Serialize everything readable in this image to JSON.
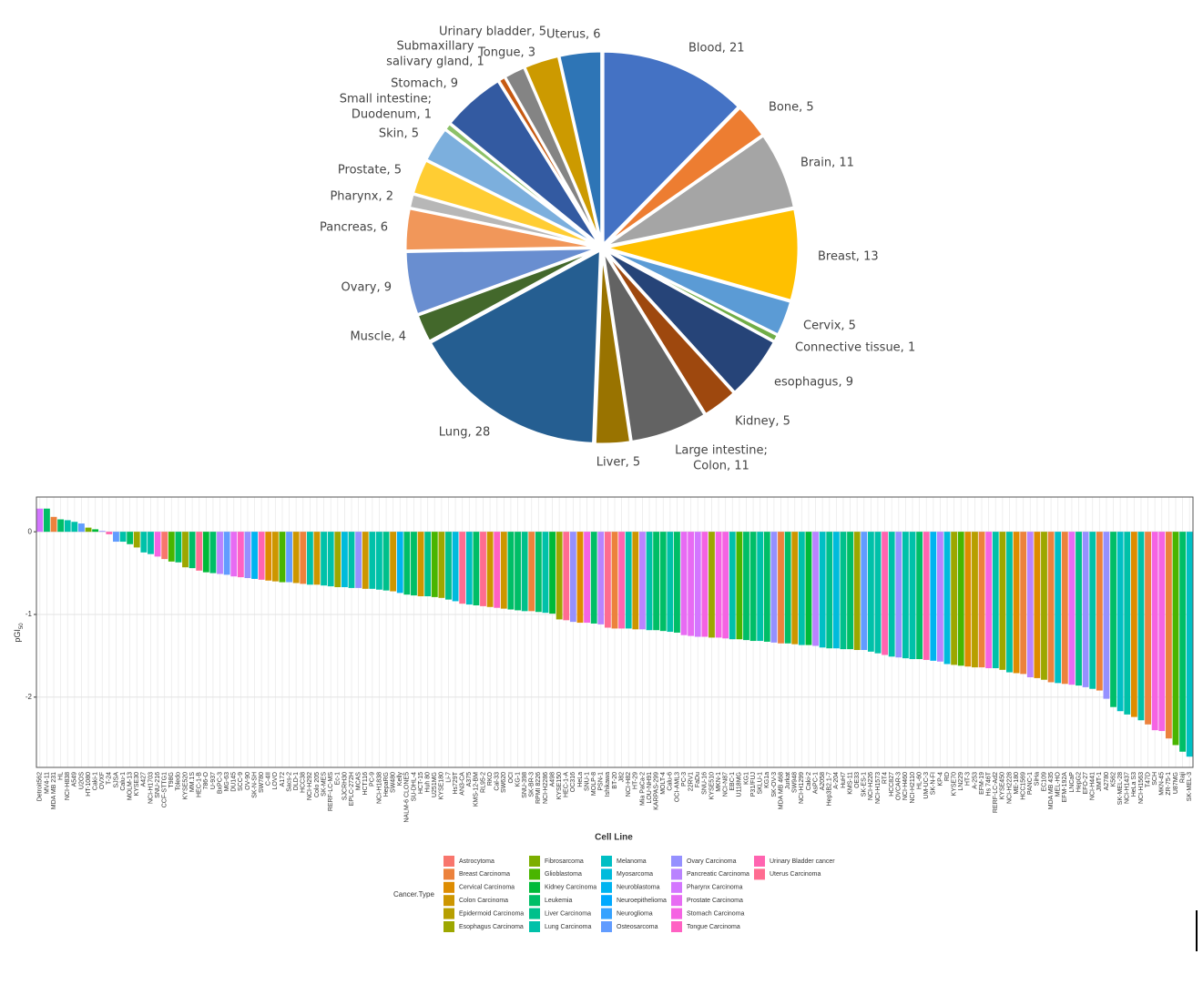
{
  "chart_data": [
    {
      "type": "pie",
      "categories": [
        "Blood",
        "Bone",
        "Brain",
        "Breast",
        "Cervix",
        "Connective tissue",
        "esophagus",
        "Kidney",
        "Large intestine; Colon",
        "Liver",
        "Lung",
        "Muscle",
        "Ovary",
        "Pancreas",
        "Pharynx",
        "Prostate",
        "Skin",
        "Small intestine; Duodenum",
        "Stomach",
        "Submaxillary salivary gland",
        "Tongue",
        "Urinary bladder",
        "Uterus"
      ],
      "values": [
        21,
        5,
        11,
        13,
        5,
        1,
        9,
        5,
        11,
        5,
        28,
        4,
        9,
        6,
        2,
        5,
        5,
        1,
        9,
        1,
        3,
        5,
        6
      ],
      "value_labels": [
        [
          "Blood, 21"
        ],
        [
          "Bone, 5"
        ],
        [
          "Brain, 11"
        ],
        [
          "Breast, 13"
        ],
        [
          "Cervix, 5"
        ],
        [
          "Connective tissue, 1"
        ],
        [
          "esophagus, 9"
        ],
        [
          "Kidney, 5"
        ],
        [
          "Large intestine;",
          "Colon, 11"
        ],
        [
          "Liver, 5"
        ],
        [
          "Lung, 28"
        ],
        [
          "Muscle, 4"
        ],
        [
          "Ovary, 9"
        ],
        [
          "Pancreas, 6"
        ],
        [
          "Pharynx, 2"
        ],
        [
          "Prostate, 5"
        ],
        [
          "Skin, 5"
        ],
        [
          "Small intestine;",
          "Duodenum, 1"
        ],
        [
          "Stomach, 9"
        ],
        [
          "Submaxillary",
          "salivary gland, 1"
        ],
        [
          "Tongue, 3"
        ],
        [
          "Urinary bladder, 5"
        ],
        [
          "Uterus, 6"
        ]
      ],
      "colors": [
        "#4472C4",
        "#ED7D31",
        "#A5A5A5",
        "#FFC000",
        "#5B9BD5",
        "#70AD47",
        "#264478",
        "#9E480E",
        "#636363",
        "#997300",
        "#255E91",
        "#43682B",
        "#698ED0",
        "#F1975A",
        "#B7B7B7",
        "#FFCD33",
        "#7CAFDD",
        "#8CC168",
        "#335AA1",
        "#C65911",
        "#848484",
        "#CC9A00",
        "#2E75B6"
      ]
    },
    {
      "type": "bar",
      "categories": [
        "Detroit562",
        "MV4-11",
        "MDA MB 231",
        "HL",
        "NCI-H838",
        "A549",
        "U2OS",
        "HT-1080",
        "Caki-1",
        "OVXF",
        "T-24",
        "SJSA",
        "Calu-1",
        "MOLM-13",
        "KYSE30",
        "A427",
        "NCI-H1703",
        "SNU-216",
        "CCF-STTG1",
        "T98G",
        "Toledo",
        "KYSE520",
        "MM.1S",
        "HEC-1-B",
        "786-O",
        "U-937",
        "BxPC-3",
        "MG-63",
        "DU145",
        "SCC-9",
        "OV-90",
        "SK-N-SH",
        "SW780",
        "C-4II",
        "LOVO",
        "A172",
        "Sacs-2",
        "DLD-1",
        "HCC38",
        "NCI-H292",
        "Colo 205",
        "SK-MES",
        "RERF-LC-MS",
        "Ec-1",
        "SJCRH30",
        "EPLC-272H",
        "MCAS",
        "HCT116",
        "PC-9",
        "NCI-H1838",
        "HepaRG",
        "SW480",
        "Kelly",
        "NALM-6 CLONE5",
        "SU-DHL-4",
        "HCT-15",
        "Huh 80",
        "U251MG",
        "KYSE180",
        "Li-7",
        "Hs729T",
        "AN3-CA",
        "A375",
        "KMS-12-BM",
        "RL95-2",
        "RKO",
        "Cal-33",
        "SW620",
        "OCI",
        "KG-1",
        "SNU-398",
        "SK-BR-3",
        "RPMI 8226",
        "NCI-H2286",
        "A498",
        "KYSE150",
        "HEC-1-A",
        "OC316",
        "HeLa",
        "SNU-1",
        "MOLP-8",
        "PSN-1",
        "Ishikawa",
        "BT-20",
        "J82",
        "NCI-H82",
        "HT-29",
        "Mia PaCa-2",
        "LOU-NH91",
        "KARPAS-299",
        "MOLT-4",
        "Calu-6",
        "OCI-AML3",
        "PC-3",
        "22RV1",
        "FaDu",
        "SNU-16",
        "KYSE510",
        "MKN-1",
        "NCI-N87",
        "EBC-1",
        "U118MG",
        "KG1",
        "P31/FUJ",
        "SKLU-1",
        "KG1a",
        "SK-OV-3",
        "MDA MB 468",
        "Jurkat",
        "SW948",
        "NCI-H1299",
        "Caki-2",
        "AsPC-1",
        "A2058",
        "Hep3B2.1-7",
        "A-204",
        "HuH7",
        "KMS-11",
        "OE33",
        "SK-ES-1",
        "NCI-H226",
        "NCI-H1573",
        "RT4",
        "HCC827",
        "OVCAR-3",
        "NCI-H460",
        "NCI-H2110",
        "HL-60",
        "UM-UC-3",
        "SK-N-FI",
        "KP-4",
        "RD",
        "KYSE70",
        "LN229",
        "HT-3",
        "A-253",
        "EFM-19",
        "Hs 746T",
        "RERF-LC-Ad2",
        "KYSE450",
        "NCI-H2228",
        "ME-180",
        "HCC1569",
        "PANC-1",
        "SiHa",
        "EC109",
        "MDA MB 435",
        "MEL-HO",
        "EFM-192A",
        "LNCaP",
        "HepG2",
        "EFO-27",
        "NCI-H441",
        "JIMT-1",
        "A2780",
        "K562",
        "SK-MEL-28",
        "NCI-H1437",
        "HeLa S3",
        "NCI-H1563",
        "T47D",
        "SCH",
        "MKN-45",
        "ZR-75-1",
        "U87MG",
        "Raji",
        "SK-MEL-3"
      ],
      "values": [
        0.28,
        0.28,
        0.18,
        0.15,
        0.14,
        0.12,
        0.1,
        0.05,
        0.03,
        0.01,
        -0.03,
        -0.12,
        -0.12,
        -0.15,
        -0.19,
        -0.25,
        -0.27,
        -0.3,
        -0.33,
        -0.36,
        -0.37,
        -0.43,
        -0.44,
        -0.47,
        -0.49,
        -0.5,
        -0.51,
        -0.52,
        -0.54,
        -0.55,
        -0.56,
        -0.57,
        -0.58,
        -0.59,
        -0.6,
        -0.61,
        -0.61,
        -0.62,
        -0.63,
        -0.64,
        -0.64,
        -0.65,
        -0.66,
        -0.67,
        -0.67,
        -0.68,
        -0.68,
        -0.69,
        -0.69,
        -0.7,
        -0.71,
        -0.72,
        -0.74,
        -0.76,
        -0.77,
        -0.78,
        -0.78,
        -0.79,
        -0.8,
        -0.82,
        -0.84,
        -0.87,
        -0.88,
        -0.89,
        -0.9,
        -0.91,
        -0.92,
        -0.93,
        -0.94,
        -0.95,
        -0.96,
        -0.96,
        -0.97,
        -0.98,
        -0.99,
        -1.06,
        -1.07,
        -1.09,
        -1.1,
        -1.1,
        -1.11,
        -1.12,
        -1.16,
        -1.17,
        -1.17,
        -1.17,
        -1.18,
        -1.18,
        -1.19,
        -1.19,
        -1.2,
        -1.21,
        -1.22,
        -1.25,
        -1.26,
        -1.27,
        -1.27,
        -1.28,
        -1.28,
        -1.29,
        -1.3,
        -1.3,
        -1.31,
        -1.32,
        -1.32,
        -1.33,
        -1.34,
        -1.35,
        -1.35,
        -1.36,
        -1.37,
        -1.37,
        -1.38,
        -1.4,
        -1.41,
        -1.41,
        -1.42,
        -1.42,
        -1.43,
        -1.43,
        -1.45,
        -1.47,
        -1.49,
        -1.51,
        -1.52,
        -1.53,
        -1.54,
        -1.54,
        -1.55,
        -1.56,
        -1.57,
        -1.6,
        -1.61,
        -1.62,
        -1.63,
        -1.64,
        -1.64,
        -1.65,
        -1.65,
        -1.67,
        -1.7,
        -1.71,
        -1.72,
        -1.76,
        -1.77,
        -1.79,
        -1.82,
        -1.83,
        -1.84,
        -1.85,
        -1.86,
        -1.88,
        -1.9,
        -1.92,
        -2.02,
        -2.12,
        -2.17,
        -2.21,
        -2.24,
        -2.28,
        -2.33,
        -2.4,
        -2.41,
        -2.5,
        -2.58,
        -2.66,
        -2.72
      ],
      "colors": [
        "#D376FF",
        "#00BE67",
        "#EC823C",
        "#00BE67",
        "#00C1A9",
        "#00C1A9",
        "#619CFF",
        "#7CAE00",
        "#00BA38",
        "#9590FF",
        "#FF64B0",
        "#619CFF",
        "#00C1A9",
        "#00BE67",
        "#9DA700",
        "#00C1A9",
        "#00C1A9",
        "#F563E3",
        "#F8766D",
        "#49B500",
        "#00BE67",
        "#9DA700",
        "#00BE67",
        "#FF6C91",
        "#00BA38",
        "#00BE67",
        "#B983FF",
        "#619CFF",
        "#E76BF3",
        "#FF61C3",
        "#9590FF",
        "#00B4F0",
        "#FF64B0",
        "#DE8C00",
        "#CD9600",
        "#49B500",
        "#619CFF",
        "#CD9600",
        "#EC823C",
        "#00C1A9",
        "#CD9600",
        "#00C1A9",
        "#00C1A9",
        "#9DA700",
        "#00BBDC",
        "#00C1A9",
        "#9590FF",
        "#CD9600",
        "#00C1A9",
        "#00C1A9",
        "#00C08B",
        "#CD9600",
        "#00B4F0",
        "#00BE67",
        "#00BE67",
        "#CD9600",
        "#00C08B",
        "#49B500",
        "#9DA700",
        "#00C08B",
        "#00BBDC",
        "#FF6C91",
        "#00BFC4",
        "#00BE67",
        "#FF6C91",
        "#CD9600",
        "#FF61C3",
        "#CD9600",
        "#00BE67",
        "#00BE67",
        "#00C08B",
        "#EC823C",
        "#00BE67",
        "#00C1A9",
        "#00BA38",
        "#9DA700",
        "#FF6C91",
        "#9590FF",
        "#DE8C00",
        "#F563E3",
        "#00BE67",
        "#B983FF",
        "#FF6C91",
        "#EC823C",
        "#FF64B0",
        "#00C1A9",
        "#CD9600",
        "#B983FF",
        "#00C1A9",
        "#00BE67",
        "#00BE67",
        "#00C1A9",
        "#00BE67",
        "#E76BF3",
        "#E76BF3",
        "#D376FF",
        "#F563E3",
        "#9DA700",
        "#F563E3",
        "#F563E3",
        "#00C1A9",
        "#49B500",
        "#00BE67",
        "#00BE67",
        "#00C1A9",
        "#00BE67",
        "#9590FF",
        "#EC823C",
        "#00BE67",
        "#CD9600",
        "#00C1A9",
        "#00BA38",
        "#B983FF",
        "#00BFC4",
        "#00C08B",
        "#00BBDC",
        "#00C08B",
        "#00BE67",
        "#9DA700",
        "#619CFF",
        "#00C1A9",
        "#00C1A9",
        "#FF64B0",
        "#00C1A9",
        "#9590FF",
        "#00C1A9",
        "#00C1A9",
        "#00BE67",
        "#FF64B0",
        "#00B4F0",
        "#B983FF",
        "#00BBDC",
        "#9DA700",
        "#49B500",
        "#DE8C00",
        "#B79F00",
        "#EC823C",
        "#F563E3",
        "#00C1A9",
        "#9DA700",
        "#00C1A9",
        "#DE8C00",
        "#EC823C",
        "#B983FF",
        "#DE8C00",
        "#9DA700",
        "#EC823C",
        "#00BFC4",
        "#EC823C",
        "#E76BF3",
        "#00C08B",
        "#9590FF",
        "#00C1A9",
        "#EC823C",
        "#9590FF",
        "#00BE67",
        "#00BFC4",
        "#00C1A9",
        "#DE8C00",
        "#00C1A9",
        "#EC823C",
        "#F563E3",
        "#F563E3",
        "#EC823C",
        "#49B500",
        "#00BE67",
        "#00BFC4"
      ],
      "ylim": [
        -2.85,
        0.42
      ],
      "yticks": [
        -2,
        -1,
        0
      ],
      "grid": true,
      "xlabel": "Cell Line",
      "ylabel": [
        "pGI",
        "50"
      ],
      "legend_title": "Cancer.Type",
      "legend": [
        {
          "name": "Astrocytoma",
          "color": "#F8766D"
        },
        {
          "name": "Breast Carcinoma",
          "color": "#EC823C"
        },
        {
          "name": "Cervical Carcinoma",
          "color": "#DE8C00"
        },
        {
          "name": "Colon Carcinoma",
          "color": "#CD9600"
        },
        {
          "name": "Epidermoid Carcinoma",
          "color": "#B79F00"
        },
        {
          "name": "Esophagus Carcinoma",
          "color": "#9DA700"
        },
        {
          "name": "Fibrosarcoma",
          "color": "#7CAE00"
        },
        {
          "name": "Glioblastoma",
          "color": "#49B500"
        },
        {
          "name": "Kidney Carcinoma",
          "color": "#00BA38"
        },
        {
          "name": "Leukemia",
          "color": "#00BE67"
        },
        {
          "name": "Liver Carcinoma",
          "color": "#00C08B"
        },
        {
          "name": "Lung Carcinoma",
          "color": "#00C1A9"
        },
        {
          "name": "Melanoma",
          "color": "#00BFC4"
        },
        {
          "name": "Myosarcoma",
          "color": "#00BBDC"
        },
        {
          "name": "Neuroblastoma",
          "color": "#00B4F0"
        },
        {
          "name": "Neuroepithelioma",
          "color": "#00A9FF"
        },
        {
          "name": "Neuroglioma",
          "color": "#35A2FF"
        },
        {
          "name": "Osteosarcoma",
          "color": "#619CFF"
        },
        {
          "name": "Ovary Carcinoma",
          "color": "#9590FF"
        },
        {
          "name": "Pancreatic Carcinoma",
          "color": "#B983FF"
        },
        {
          "name": "Pharynx Carcinoma",
          "color": "#D376FF"
        },
        {
          "name": "Prostate Carcinoma",
          "color": "#E76BF3"
        },
        {
          "name": "Stomach Carcinoma",
          "color": "#F563E3"
        },
        {
          "name": "Tongue Carcinoma",
          "color": "#FF61C3"
        },
        {
          "name": "Urinary Bladder cancer",
          "color": "#FF64B0"
        },
        {
          "name": "Uterus Carcinoma",
          "color": "#FF6C91"
        }
      ]
    }
  ]
}
